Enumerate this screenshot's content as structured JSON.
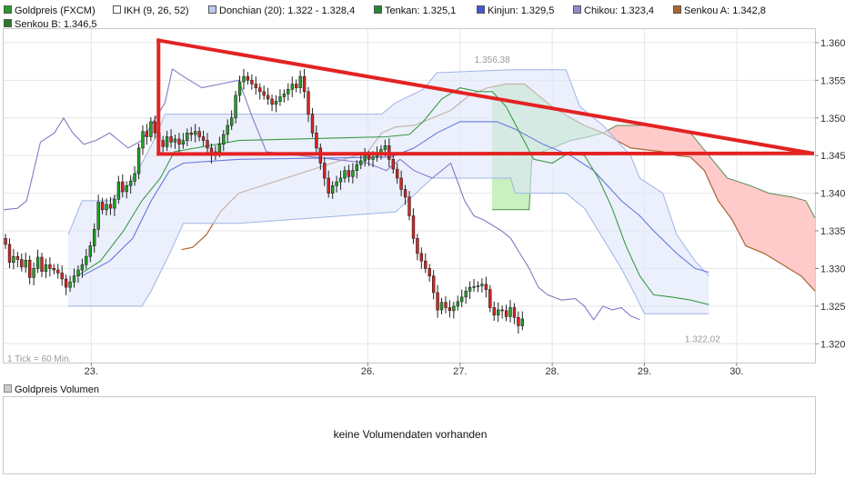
{
  "legend": [
    {
      "label": "Goldpreis (FXCM)",
      "color": "#2a9a2a"
    },
    {
      "label": "IKH (9, 26, 52)",
      "color": "#ffffff"
    },
    {
      "label": "Donchian (20): 1.322 - 1.328,4",
      "color": "#b8c8ee"
    },
    {
      "label": "Tenkan: 1.325,1",
      "color": "#228833"
    },
    {
      "label": "Kinjun: 1.329,5",
      "color": "#4455dd"
    },
    {
      "label": "Chikou: 1.323,4",
      "color": "#9988cc"
    },
    {
      "label": "Senkou A: 1.342,8",
      "color": "#aa6633"
    },
    {
      "label": "Senkou B: 1.346,5",
      "color": "#2a7a2a"
    }
  ],
  "volume_legend": {
    "label": "Goldpreis Volumen",
    "color": "#cccccc"
  },
  "volume_message": "keine Volumendaten vorhanden",
  "tick_info": "1 Tick = 60 Min.",
  "annotations": {
    "high": "1.356,38",
    "low": "1.322,02"
  },
  "chart_data": {
    "type": "candlestick",
    "interval": "60 Min.",
    "x_ticks": [
      {
        "label": "23.",
        "x": 23
      },
      {
        "label": "26.",
        "x": 26
      },
      {
        "label": "27.",
        "x": 27
      },
      {
        "label": "28.",
        "x": 28
      },
      {
        "label": "29.",
        "x": 29
      },
      {
        "label": "30.",
        "x": 30
      }
    ],
    "x_range": [
      22.05,
      30.85
    ],
    "y_ticks": [
      {
        "label": "1.360",
        "v": 1.36
      },
      {
        "label": "1.355",
        "v": 1.355
      },
      {
        "label": "1.350",
        "v": 1.35
      },
      {
        "label": "1.345",
        "v": 1.345
      },
      {
        "label": "1.340",
        "v": 1.34
      },
      {
        "label": "1.335",
        "v": 1.335
      },
      {
        "label": "1.330",
        "v": 1.33
      },
      {
        "label": "1.325",
        "v": 1.325
      },
      {
        "label": "1.320",
        "v": 1.32
      }
    ],
    "ylim": [
      1.3175,
      1.3618
    ],
    "high": {
      "x": 27.35,
      "y": 1.35638,
      "label": "1.356,38"
    },
    "low": {
      "x": 29.63,
      "y": 1.32202,
      "label": "1.322,02"
    },
    "candles_start": 22.07,
    "candle_step": 0.0438,
    "closes": [
      1.3332,
      1.3308,
      1.3316,
      1.3312,
      1.3302,
      1.3311,
      1.3288,
      1.33,
      1.3315,
      1.3296,
      1.3305,
      1.33,
      1.3298,
      1.3294,
      1.3286,
      1.3275,
      1.3282,
      1.329,
      1.3298,
      1.3305,
      1.3316,
      1.333,
      1.3352,
      1.3388,
      1.3378,
      1.3385,
      1.338,
      1.3392,
      1.3415,
      1.3402,
      1.341,
      1.3416,
      1.3426,
      1.346,
      1.3482,
      1.3475,
      1.3495,
      1.348,
      1.347,
      1.3462,
      1.3475,
      1.3468,
      1.3472,
      1.3465,
      1.347,
      1.348,
      1.3478,
      1.3482,
      1.3475,
      1.347,
      1.346,
      1.345,
      1.3455,
      1.3465,
      1.3478,
      1.349,
      1.35,
      1.353,
      1.3548,
      1.3555,
      1.355,
      1.3545,
      1.354,
      1.3535,
      1.353,
      1.3525,
      1.3518,
      1.3522,
      1.3528,
      1.3532,
      1.3538,
      1.3545,
      1.354,
      1.3555,
      1.3535,
      1.3505,
      1.348,
      1.346,
      1.344,
      1.342,
      1.34,
      1.341,
      1.3415,
      1.342,
      1.343,
      1.3422,
      1.343,
      1.3438,
      1.3443,
      1.345,
      1.3445,
      1.3448,
      1.3452,
      1.3458,
      1.3463,
      1.3445,
      1.3432,
      1.342,
      1.3405,
      1.3395,
      1.337,
      1.334,
      1.332,
      1.331,
      1.33,
      1.329,
      1.3268,
      1.3245,
      1.3255,
      1.3248,
      1.3244,
      1.325,
      1.3256,
      1.3262,
      1.327,
      1.3275,
      1.3276,
      1.3277,
      1.3279,
      1.3272,
      1.3248,
      1.3238,
      1.3245,
      1.3244,
      1.3236,
      1.3248,
      1.3235,
      1.3224,
      1.3233
    ],
    "donchian": {
      "upper": [
        [
          22.75,
          1.3345
        ],
        [
          22.9,
          1.339
        ],
        [
          23.2,
          1.339
        ],
        [
          23.4,
          1.341
        ],
        [
          23.55,
          1.344
        ],
        [
          23.7,
          1.3475
        ],
        [
          23.8,
          1.3505
        ],
        [
          24.6,
          1.3505
        ],
        [
          26.15,
          1.3505
        ],
        [
          26.3,
          1.352
        ],
        [
          26.6,
          1.3538
        ],
        [
          26.75,
          1.356
        ],
        [
          27.55,
          1.3564
        ],
        [
          28.15,
          1.3564
        ],
        [
          28.3,
          1.3515
        ],
        [
          28.55,
          1.349
        ],
        [
          28.7,
          1.347
        ],
        [
          28.85,
          1.345
        ],
        [
          28.95,
          1.342
        ],
        [
          29.2,
          1.34
        ],
        [
          29.35,
          1.3345
        ],
        [
          29.55,
          1.331
        ],
        [
          29.7,
          1.329
        ]
      ],
      "lower": [
        [
          22.75,
          1.325
        ],
        [
          23.55,
          1.325
        ],
        [
          23.65,
          1.327
        ],
        [
          23.85,
          1.332
        ],
        [
          24.0,
          1.336
        ],
        [
          24.6,
          1.336
        ],
        [
          26.3,
          1.3375
        ],
        [
          26.7,
          1.342
        ],
        [
          27.55,
          1.342
        ],
        [
          27.6,
          1.34
        ],
        [
          28.15,
          1.34
        ],
        [
          28.35,
          1.338
        ],
        [
          28.55,
          1.334
        ],
        [
          28.75,
          1.33
        ],
        [
          28.9,
          1.3265
        ],
        [
          29.0,
          1.324
        ],
        [
          29.7,
          1.324
        ]
      ]
    },
    "tenkan": [
      [
        22.85,
        1.329
      ],
      [
        23.1,
        1.331
      ],
      [
        23.35,
        1.335
      ],
      [
        23.55,
        1.339
      ],
      [
        23.75,
        1.342
      ],
      [
        23.9,
        1.3455
      ],
      [
        24.6,
        1.347
      ],
      [
        26.2,
        1.3475
      ],
      [
        26.45,
        1.3478
      ],
      [
        26.6,
        1.3495
      ],
      [
        26.8,
        1.3525
      ],
      [
        27.0,
        1.354
      ],
      [
        27.2,
        1.3535
      ],
      [
        27.35,
        1.3535
      ],
      [
        27.5,
        1.3515
      ],
      [
        27.65,
        1.348
      ],
      [
        27.8,
        1.3445
      ],
      [
        28.0,
        1.344
      ],
      [
        28.2,
        1.3455
      ],
      [
        28.35,
        1.345
      ],
      [
        28.5,
        1.342
      ],
      [
        28.65,
        1.338
      ],
      [
        28.8,
        1.333
      ],
      [
        28.95,
        1.329
      ],
      [
        29.1,
        1.3265
      ],
      [
        29.3,
        1.3262
      ],
      [
        29.5,
        1.3258
      ],
      [
        29.7,
        1.3252
      ]
    ],
    "kijun": [
      [
        22.9,
        1.329
      ],
      [
        23.2,
        1.331
      ],
      [
        23.45,
        1.334
      ],
      [
        23.65,
        1.339
      ],
      [
        23.85,
        1.343
      ],
      [
        24.0,
        1.344
      ],
      [
        24.6,
        1.3445
      ],
      [
        26.25,
        1.3448
      ],
      [
        26.5,
        1.346
      ],
      [
        26.75,
        1.348
      ],
      [
        27.0,
        1.3495
      ],
      [
        27.4,
        1.3495
      ],
      [
        27.6,
        1.3485
      ],
      [
        27.9,
        1.3465
      ],
      [
        28.2,
        1.345
      ],
      [
        28.45,
        1.343
      ],
      [
        28.6,
        1.341
      ],
      [
        28.75,
        1.339
      ],
      [
        28.95,
        1.337
      ],
      [
        29.1,
        1.335
      ],
      [
        29.35,
        1.332
      ],
      [
        29.55,
        1.33
      ],
      [
        29.7,
        1.3295
      ]
    ],
    "chikou": [
      [
        22.05,
        1.3378
      ],
      [
        22.2,
        1.338
      ],
      [
        22.3,
        1.339
      ],
      [
        22.45,
        1.3468
      ],
      [
        22.6,
        1.348
      ],
      [
        22.7,
        1.35
      ],
      [
        22.8,
        1.348
      ],
      [
        22.92,
        1.3465
      ],
      [
        23.05,
        1.347
      ],
      [
        23.2,
        1.348
      ],
      [
        23.4,
        1.346
      ],
      [
        23.55,
        1.347
      ],
      [
        23.7,
        1.35
      ],
      [
        23.8,
        1.352
      ],
      [
        23.88,
        1.3565
      ],
      [
        24.0,
        1.3555
      ],
      [
        24.2,
        1.354
      ],
      [
        24.4,
        1.3545
      ],
      [
        24.6,
        1.355
      ],
      [
        24.75,
        1.35
      ],
      [
        24.9,
        1.3455
      ],
      [
        26.0,
        1.344
      ],
      [
        26.2,
        1.343
      ],
      [
        26.35,
        1.3445
      ],
      [
        26.5,
        1.343
      ],
      [
        26.7,
        1.342
      ],
      [
        26.9,
        1.344
      ],
      [
        27.05,
        1.339
      ],
      [
        27.15,
        1.337
      ],
      [
        27.25,
        1.3365
      ],
      [
        27.45,
        1.335
      ],
      [
        27.55,
        1.334
      ],
      [
        27.65,
        1.332
      ],
      [
        27.75,
        1.33
      ],
      [
        27.85,
        1.3275
      ],
      [
        27.95,
        1.3265
      ],
      [
        28.1,
        1.3258
      ],
      [
        28.25,
        1.326
      ],
      [
        28.35,
        1.325
      ],
      [
        28.45,
        1.3232
      ],
      [
        28.55,
        1.325
      ],
      [
        28.65,
        1.3245
      ],
      [
        28.75,
        1.3248
      ],
      [
        28.85,
        1.3237
      ],
      [
        28.95,
        1.3232
      ]
    ],
    "senkou_a": [
      [
        23.98,
        1.3325
      ],
      [
        24.1,
        1.3328
      ],
      [
        24.25,
        1.3345
      ],
      [
        24.4,
        1.3375
      ],
      [
        24.6,
        1.34
      ],
      [
        26.0,
        1.3455
      ],
      [
        26.15,
        1.348
      ],
      [
        26.3,
        1.3488
      ],
      [
        26.5,
        1.349
      ],
      [
        26.7,
        1.35
      ],
      [
        26.9,
        1.351
      ],
      [
        27.1,
        1.353
      ],
      [
        27.3,
        1.354
      ],
      [
        27.5,
        1.3545
      ],
      [
        27.7,
        1.3545
      ],
      [
        27.8,
        1.3535
      ],
      [
        28.0,
        1.3515
      ],
      [
        28.2,
        1.35
      ],
      [
        28.35,
        1.349
      ],
      [
        28.55,
        1.348
      ],
      [
        28.7,
        1.347
      ],
      [
        28.85,
        1.346
      ],
      [
        29.0,
        1.3458
      ],
      [
        29.2,
        1.3455
      ],
      [
        29.35,
        1.345
      ],
      [
        29.5,
        1.3448
      ],
      [
        29.65,
        1.343
      ],
      [
        29.8,
        1.339
      ],
      [
        29.95,
        1.3365
      ],
      [
        30.1,
        1.333
      ],
      [
        30.3,
        1.332
      ],
      [
        30.5,
        1.3305
      ],
      [
        30.7,
        1.329
      ],
      [
        30.85,
        1.327
      ]
    ],
    "senkou_b": [
      [
        27.35,
        1.3378
      ],
      [
        27.55,
        1.3378
      ],
      [
        27.75,
        1.3378
      ],
      [
        27.78,
        1.345
      ],
      [
        28.0,
        1.346
      ],
      [
        28.2,
        1.347
      ],
      [
        28.4,
        1.3475
      ],
      [
        28.55,
        1.348
      ],
      [
        28.7,
        1.349
      ],
      [
        28.85,
        1.349
      ],
      [
        29.0,
        1.349
      ],
      [
        29.25,
        1.3488
      ],
      [
        29.5,
        1.348
      ],
      [
        29.7,
        1.345
      ],
      [
        29.9,
        1.342
      ],
      [
        30.15,
        1.341
      ],
      [
        30.35,
        1.34
      ],
      [
        30.6,
        1.3395
      ],
      [
        30.75,
        1.339
      ],
      [
        30.85,
        1.3367
      ]
    ],
    "trendlines": [
      {
        "name": "upper-trendline",
        "points": [
          [
            23.73,
            1.3603
          ],
          [
            30.82,
            1.3453
          ]
        ]
      },
      {
        "name": "lower-trendline",
        "points": [
          [
            23.73,
            1.3452
          ],
          [
            30.82,
            1.3453
          ]
        ]
      },
      {
        "name": "left-edge",
        "points": [
          [
            23.73,
            1.3603
          ],
          [
            23.73,
            1.3452
          ]
        ]
      }
    ]
  }
}
